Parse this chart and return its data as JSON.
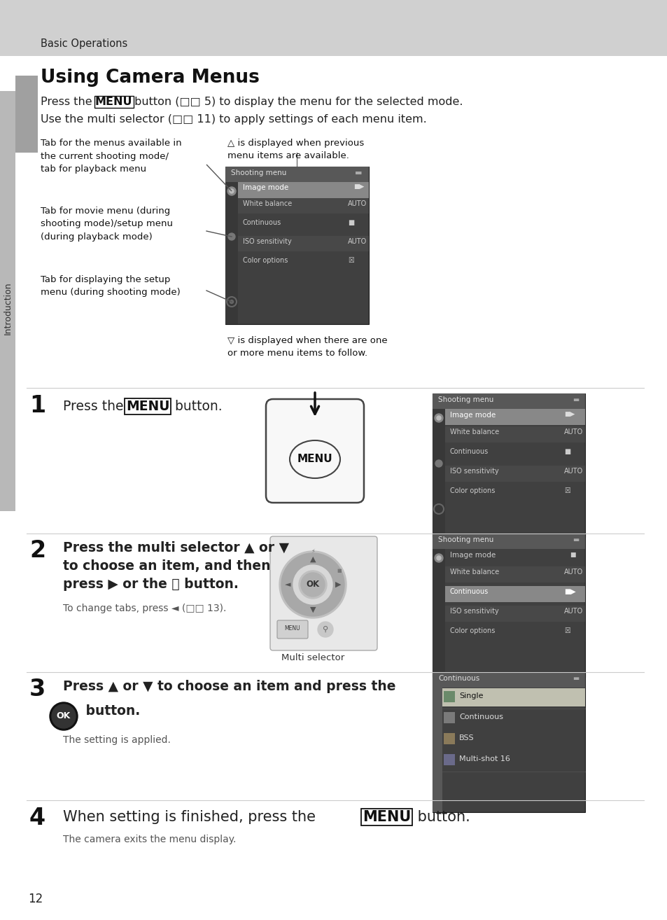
{
  "bg_color": "#ffffff",
  "header_bg": "#d0d0d0",
  "header_text": "Basic Operations",
  "sidebar_bg": "#b8b8b8",
  "sidebar_accent": "#a0a0a0",
  "title": "Using Camera Menus",
  "page_number": "12",
  "sidebar_label": "Introduction",
  "menu_dark_bg": "#404040",
  "menu_header_bg": "#585858",
  "menu_alt_bg": "#4a4a4a",
  "menu_selected_bg": "#808080",
  "menu_text_light": "#ffffff",
  "menu_text_dim": "#cccccc",
  "menu_text_header": "#e0e0e0",
  "divider_color": "#cccccc",
  "text_color": "#111111",
  "subtext_color": "#555555"
}
